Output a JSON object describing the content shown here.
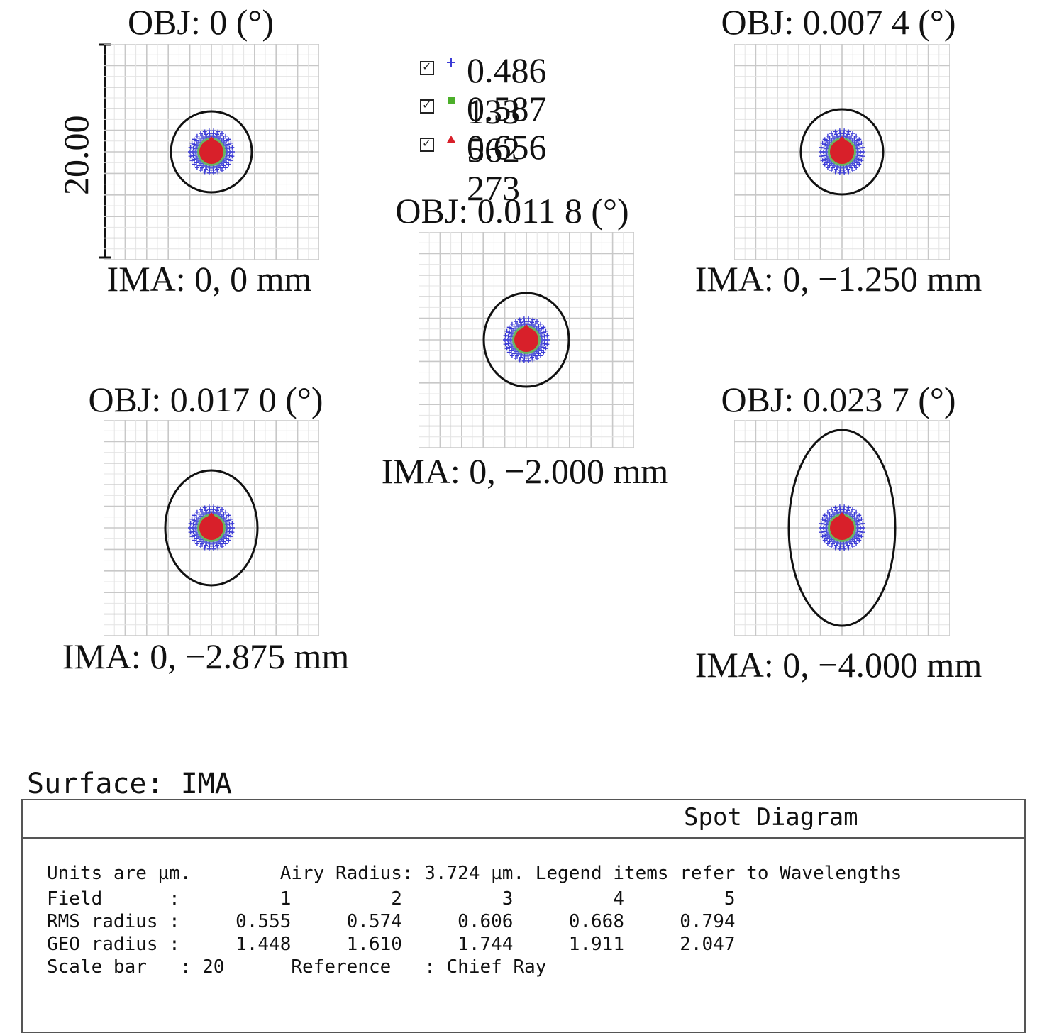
{
  "scale": {
    "label": "20.00",
    "value_um": 20
  },
  "legend": [
    {
      "marker": "plus",
      "color": "#3b3bd6",
      "wavelength": "0.486 133"
    },
    {
      "marker": "square",
      "color": "#4caf2a",
      "wavelength": "0.587 562"
    },
    {
      "marker": "triangle",
      "color": "#d8202a",
      "wavelength": "0.656 273"
    }
  ],
  "fields": [
    {
      "obj": "OBJ: 0 (°)",
      "ima": "IMA: 0, 0 mm",
      "airy_rx": 57,
      "airy_ry": 57
    },
    {
      "obj": "OBJ: 0.007 4 (°)",
      "ima": "IMA: 0, −1.250 mm",
      "airy_rx": 58,
      "airy_ry": 60
    },
    {
      "obj": "OBJ: 0.011 8 (°)",
      "ima": "IMA: 0, −2.000 mm",
      "airy_rx": 60,
      "airy_ry": 66
    },
    {
      "obj": "OBJ: 0.017 0 (°)",
      "ima": "IMA: 0, −2.875 mm",
      "airy_rx": 65,
      "airy_ry": 81
    },
    {
      "obj": "OBJ: 0.023 7 (°)",
      "ima": "IMA: 0, −4.000 mm",
      "airy_rx": 75,
      "airy_ry": 138
    }
  ],
  "surface": "Surface:  IMA",
  "info": {
    "title": "Spot Diagram",
    "line1": "Units are µm.        Airy Radius: 3.724 µm. Legend items refer to Wavelengths",
    "line2": "Field      :         1         2         3         4         5",
    "line3": "RMS radius :     0.555     0.574     0.606     0.668     0.794",
    "line4": "GEO radius :     1.448     1.610     1.744     1.911     2.047",
    "line5": "Scale bar   : 20      Reference   : Chief Ray"
  }
}
